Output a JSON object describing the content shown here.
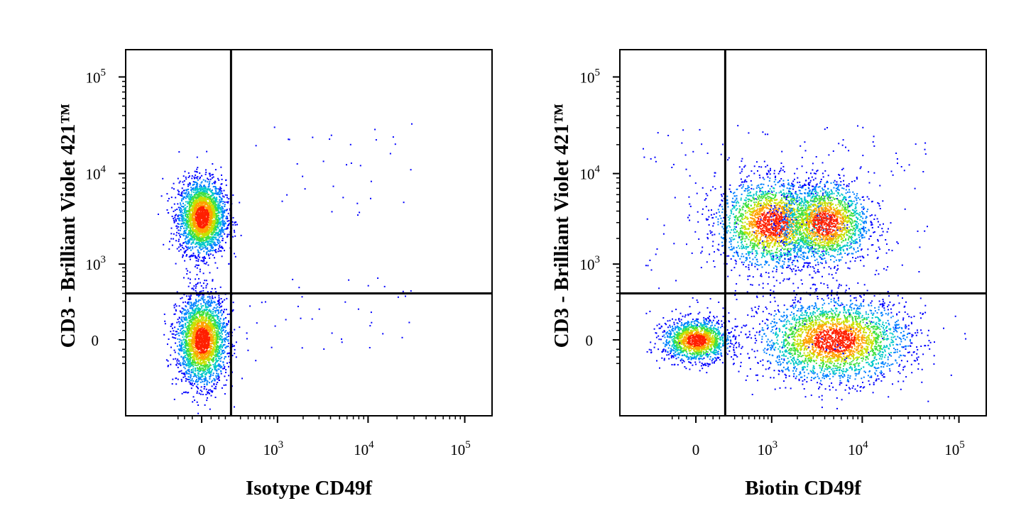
{
  "chart_data": [
    {
      "type": "scatter",
      "subtype": "flow-cytometry-density-dot-plot",
      "xlabel": "Isotype CD49f",
      "ylabel": "CD3 - Brilliant Violet 421™",
      "x_scale": "biexponential",
      "y_scale": "biexponential",
      "x_ticks": [
        {
          "value": 0,
          "label": "0"
        },
        {
          "value": 1000,
          "label": "10",
          "exp": "3"
        },
        {
          "value": 10000,
          "label": "10",
          "exp": "4"
        },
        {
          "value": 100000,
          "label": "10",
          "exp": "5"
        }
      ],
      "y_ticks": [
        {
          "value": 0,
          "label": "0"
        },
        {
          "value": 1000,
          "label": "10",
          "exp": "3"
        },
        {
          "value": 10000,
          "label": "10",
          "exp": "4"
        },
        {
          "value": 100000,
          "label": "10",
          "exp": "5"
        }
      ],
      "quadrant_gate": {
        "x": 200,
        "y": 400
      },
      "populations": [
        {
          "name": "",
          "x_center": 0,
          "y_center": 3500,
          "density": "high"
        },
        {
          "name": "",
          "x_center": 0,
          "y_center": 0,
          "density": "high"
        }
      ]
    },
    {
      "type": "scatter",
      "subtype": "flow-cytometry-density-dot-plot",
      "xlabel": "Biotin CD49f",
      "ylabel": "CD3 - Brilliant Violet 421™",
      "x_scale": "biexponential",
      "y_scale": "biexponential",
      "x_ticks": [
        {
          "value": 0,
          "label": "0"
        },
        {
          "value": 1000,
          "label": "10",
          "exp": "3"
        },
        {
          "value": 10000,
          "label": "10",
          "exp": "4"
        },
        {
          "value": 100000,
          "label": "10",
          "exp": "5"
        }
      ],
      "y_ticks": [
        {
          "value": 0,
          "label": "0"
        },
        {
          "value": 1000,
          "label": "10",
          "exp": "3"
        },
        {
          "value": 10000,
          "label": "10",
          "exp": "4"
        },
        {
          "value": 100000,
          "label": "10",
          "exp": "5"
        }
      ],
      "quadrant_gate": {
        "x": 200,
        "y": 400
      },
      "populations": [
        {
          "name": "",
          "x_center": 0,
          "y_center": 0,
          "density": "medium"
        },
        {
          "name": "",
          "x_center": 1000,
          "y_center": 3000,
          "density": "high"
        },
        {
          "name": "",
          "x_center": 4000,
          "y_center": 3000,
          "density": "high"
        },
        {
          "name": "",
          "x_center": 5000,
          "y_center": 0,
          "density": "high"
        }
      ]
    }
  ],
  "colors": {
    "density_scale": [
      "#0000ff",
      "#0080ff",
      "#00c8c8",
      "#40e040",
      "#c8e000",
      "#ffa000",
      "#ff2000"
    ],
    "gate_line": "#000000"
  }
}
